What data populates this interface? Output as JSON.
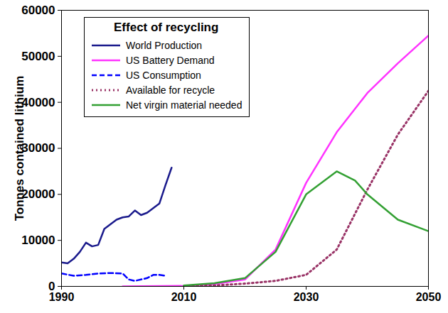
{
  "chart_data": {
    "type": "line",
    "title": "Effect of recycling",
    "y_label": "Tonnes contained lithium",
    "xlim": [
      1990,
      2050
    ],
    "xticks": [
      1990,
      2010,
      2030,
      2050
    ],
    "ylim": [
      0,
      60000
    ],
    "yticks": [
      0,
      10000,
      20000,
      30000,
      40000,
      50000,
      60000
    ],
    "grid": false,
    "legend": "top-left",
    "series": [
      {
        "name": "World Production",
        "color": "#1a1a8c",
        "line_style": "solid",
        "x": [
          1990,
          1991,
          1992,
          1993,
          1994,
          1995,
          1996,
          1997,
          1998,
          1999,
          2000,
          2001,
          2002,
          2003,
          2004,
          2005,
          2006,
          2007,
          2008
        ],
        "values": [
          5200,
          5000,
          6000,
          7500,
          9500,
          8700,
          9000,
          12500,
          13500,
          14500,
          15000,
          15200,
          16500,
          15500,
          16000,
          17000,
          18000,
          22000,
          25800
        ]
      },
      {
        "name": "US Battery Demand",
        "color": "#ff33ff",
        "line_style": "solid",
        "x": [
          2000,
          2010,
          2015,
          2020,
          2025,
          2030,
          2035,
          2040,
          2045,
          2050
        ],
        "values": [
          0,
          100,
          500,
          1500,
          8000,
          22500,
          33500,
          42000,
          48500,
          54500
        ]
      },
      {
        "name": "US Consumption",
        "color": "#0000ff",
        "line_style": "dashed",
        "x": [
          1990,
          1992,
          1994,
          1996,
          1998,
          2000,
          2001,
          2002,
          2003,
          2004,
          2005,
          2006,
          2007
        ],
        "values": [
          2800,
          2300,
          2500,
          2800,
          2900,
          2800,
          1500,
          1200,
          1500,
          1800,
          2500,
          2500,
          2300
        ]
      },
      {
        "name": "Available for recycle",
        "color": "#993366",
        "line_style": "dotted",
        "x": [
          2010,
          2015,
          2020,
          2025,
          2030,
          2035,
          2040,
          2045,
          2050
        ],
        "values": [
          0,
          200,
          600,
          1200,
          2500,
          8000,
          21000,
          33000,
          42500
        ]
      },
      {
        "name": "Net virgin material needed",
        "color": "#33a033",
        "line_style": "solid",
        "x": [
          2010,
          2015,
          2020,
          2025,
          2030,
          2035,
          2038,
          2040,
          2045,
          2050
        ],
        "values": [
          200,
          700,
          1800,
          7500,
          20000,
          25000,
          23000,
          20000,
          14500,
          12000
        ]
      }
    ]
  }
}
